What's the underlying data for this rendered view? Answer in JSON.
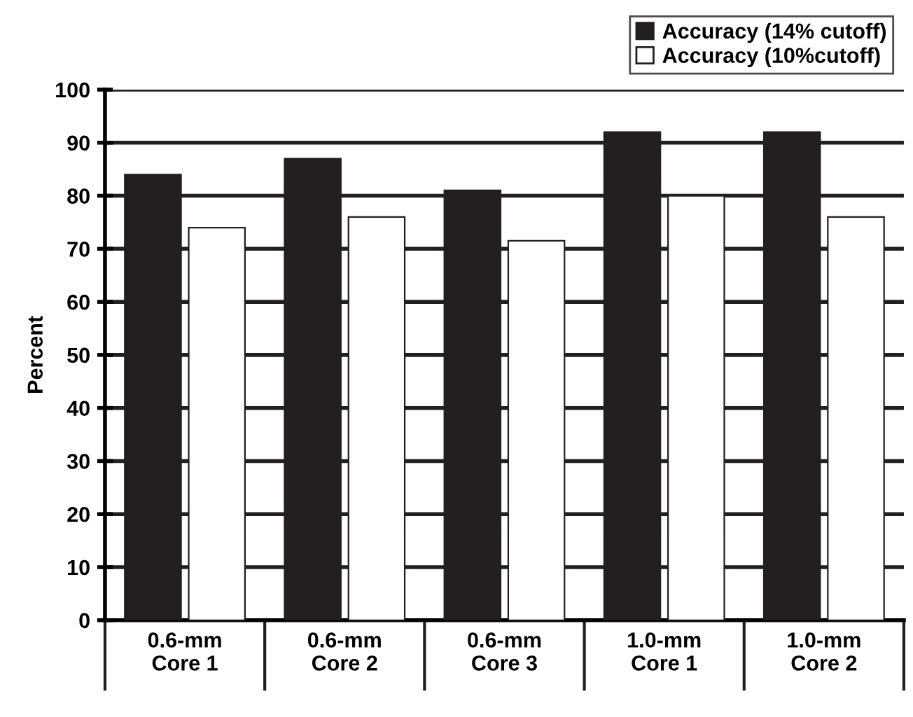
{
  "chart_data": {
    "type": "bar",
    "ylabel": "Percent",
    "categories": [
      "0.6-mm\nCore 1",
      "0.6-mm\nCore 2",
      "0.6-mm\nCore 3",
      "1.0-mm\nCore 1",
      "1.0-mm\nCore 2"
    ],
    "series": [
      {
        "name": "Accuracy (14% cutoff)",
        "color": "#231f20",
        "values": [
          84,
          87,
          81,
          92,
          92
        ]
      },
      {
        "name": "Accuracy (10%cutoff)",
        "color": "#ffffff",
        "values": [
          74,
          76,
          71.5,
          80,
          76
        ]
      }
    ],
    "ylim": [
      0,
      100
    ],
    "yticks": [
      0,
      10,
      20,
      30,
      40,
      50,
      60,
      70,
      80,
      90,
      100
    ],
    "grid": "y",
    "legend": "top right"
  }
}
